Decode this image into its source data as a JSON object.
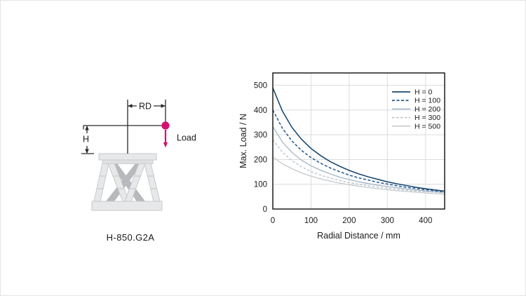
{
  "page": {
    "background": "#ffffff"
  },
  "diagram": {
    "model_label": "H-850.G2A",
    "rd_label": "RD",
    "h_label": "H",
    "load_label": "Load",
    "load_color": "#d60f6e",
    "line_color": "#2a2a2a",
    "body_fill": "#e7e8ea",
    "body_stroke": "#c7c9cb",
    "back_leg_fill": "#b7b9bc"
  },
  "chart_data": {
    "type": "line",
    "title": "",
    "xlabel": "Radial Distance / mm",
    "ylabel": "Max. Load / N",
    "xlim": [
      0,
      450
    ],
    "ylim": [
      0,
      550
    ],
    "x_ticks": [
      0,
      100,
      200,
      300,
      400
    ],
    "y_ticks": [
      0,
      100,
      200,
      300,
      400,
      500
    ],
    "grid": true,
    "grid_color": "#d9dcdf",
    "frame_color": "#1c1c1c",
    "text_color": "#1a1a1a",
    "legend_position": "top-right",
    "x": [
      0,
      25,
      50,
      75,
      100,
      125,
      150,
      175,
      200,
      225,
      250,
      275,
      300,
      325,
      350,
      375,
      400,
      425,
      450
    ],
    "series": [
      {
        "name": "H = 0",
        "color": "#1c4a73",
        "dash": "",
        "width": 1.6,
        "values": [
          490,
          396,
          330,
          282,
          245,
          216,
          192,
          173,
          156,
          142,
          130,
          120,
          110,
          102,
          95,
          88,
          82,
          77,
          72
        ]
      },
      {
        "name": "H = 100",
        "color": "#2d5f94",
        "dash": "4,2.5",
        "width": 1.6,
        "values": [
          400,
          327,
          275,
          237,
          208,
          185,
          166,
          151,
          137,
          126,
          117,
          108,
          101,
          94,
          88,
          83,
          78,
          74,
          70
        ]
      },
      {
        "name": "H = 200",
        "color": "#a3b6c6",
        "dash": "",
        "width": 1.3,
        "values": [
          333,
          271,
          229,
          198,
          175,
          157,
          142,
          129,
          119,
          110,
          103,
          96,
          91,
          86,
          81,
          77,
          73,
          70,
          67
        ]
      },
      {
        "name": "H = 300",
        "color": "#b6c0c9",
        "dash": "3.5,2.5",
        "width": 1.3,
        "values": [
          280,
          230,
          196,
          171,
          152,
          137,
          125,
          115,
          107,
          100,
          94,
          89,
          84,
          80,
          76,
          73,
          70,
          68,
          65
        ]
      },
      {
        "name": "H = 500",
        "color": "#c4c9cd",
        "dash": "",
        "width": 1.3,
        "values": [
          210,
          183,
          163,
          146,
          133,
          122,
          113,
          105,
          98,
          92,
          87,
          82,
          78,
          74,
          71,
          68,
          65,
          62,
          60
        ]
      }
    ]
  }
}
